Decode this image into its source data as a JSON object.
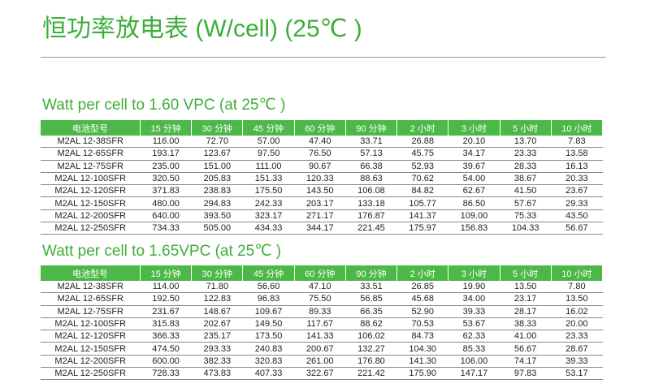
{
  "title": "恒功率放电表 (W/cell)  (25℃ )",
  "headers": [
    "电池型号",
    "15 分钟",
    "30 分钟",
    "45 分钟",
    "60 分钟",
    "90 分钟",
    "2 小时",
    "3 小时",
    "5 小时",
    "10 小时"
  ],
  "tables": [
    {
      "subtitle": "Watt per cell to 1.60 VPC (at 25℃ )",
      "rows": [
        [
          "M2AL 12-38SFR",
          "116.00",
          "72.70",
          "57.00",
          "47.40",
          "33.71",
          "26.88",
          "20.10",
          "13.70",
          "7.83"
        ],
        [
          "M2AL 12-65SFR",
          "193.17",
          "123.67",
          "97.50",
          "76.50",
          "57.13",
          "45.75",
          "34.17",
          "23.33",
          "13.58"
        ],
        [
          "M2AL 12-75SFR",
          "235.00",
          "151.00",
          "111.00",
          "90.67",
          "66.38",
          "52.93",
          "39.67",
          "28.33",
          "16.13"
        ],
        [
          "M2AL 12-100SFR",
          "320.50",
          "205.83",
          "151.33",
          "120.33",
          "88.63",
          "70.62",
          "54.00",
          "38.67",
          "20.33"
        ],
        [
          "M2AL 12-120SFR",
          "371.83",
          "238.83",
          "175.50",
          "143.50",
          "106.08",
          "84.82",
          "62.67",
          "41.50",
          "23.67"
        ],
        [
          "M2AL 12-150SFR",
          "480.00",
          "294.83",
          "242.33",
          "203.17",
          "133.18",
          "105.77",
          "86.50",
          "57.67",
          "29.33"
        ],
        [
          "M2AL 12-200SFR",
          "640.00",
          "393.50",
          "323.17",
          "271.17",
          "176.87",
          "141.37",
          "109.00",
          "75.33",
          "43.50"
        ],
        [
          "M2AL 12-250SFR",
          "734.33",
          "505.00",
          "434.33",
          "344.17",
          "221.45",
          "175.97",
          "156.83",
          "104.33",
          "56.67"
        ]
      ]
    },
    {
      "subtitle": "Watt per cell to 1.65VPC (at 25℃ )",
      "rows": [
        [
          "M2AL 12-38SFR",
          "114.00",
          "71.80",
          "56.60",
          "47.10",
          "33.51",
          "26.85",
          "19.90",
          "13.50",
          "7.80"
        ],
        [
          "M2AL 12-65SFR",
          "192.50",
          "122.83",
          "96.83",
          "75.50",
          "56.85",
          "45.68",
          "34.00",
          "23.17",
          "13.50"
        ],
        [
          "M2AL 12-75SFR",
          "231.67",
          "148.67",
          "109.67",
          "89.33",
          "66.35",
          "52.90",
          "39.33",
          "28.17",
          "16.02"
        ],
        [
          "M2AL 12-100SFR",
          "315.83",
          "202.67",
          "149.50",
          "117.67",
          "88.62",
          "70.53",
          "53.67",
          "38.33",
          "20.00"
        ],
        [
          "M2AL 12-120SFR",
          "366.33",
          "235.17",
          "173.50",
          "141.33",
          "106.02",
          "84.73",
          "62.33",
          "41.00",
          "23.33"
        ],
        [
          "M2AL 12-150SFR",
          "474.50",
          "293.33",
          "240.83",
          "200.67",
          "132.27",
          "104.30",
          "85.33",
          "56.67",
          "28.67"
        ],
        [
          "M2AL 12-200SFR",
          "600.00",
          "382.33",
          "320.83",
          "261.00",
          "176.80",
          "141.30",
          "106.00",
          "74.17",
          "39.33"
        ],
        [
          "M2AL 12-250SFR",
          "728.33",
          "473.83",
          "407.33",
          "322.67",
          "221.42",
          "175.90",
          "147.17",
          "97.83",
          "53.17"
        ]
      ]
    }
  ]
}
